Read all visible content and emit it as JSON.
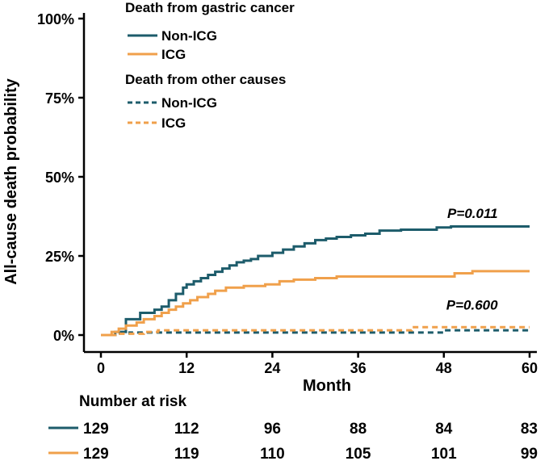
{
  "chart_data": {
    "type": "line",
    "subtype": "cumulative-incidence-step",
    "xlabel": "Month",
    "ylabel": "All-cause death probability",
    "xlim": [
      0,
      60
    ],
    "ylim": [
      0,
      100
    ],
    "x_ticks": [
      0,
      12,
      24,
      36,
      48,
      60
    ],
    "y_ticks": [
      0,
      25,
      50,
      75,
      100
    ],
    "y_tick_labels": [
      "0%",
      "25%",
      "50%",
      "75%",
      "100%"
    ],
    "legend": {
      "groups": [
        {
          "heading": "Death from gastric cancer",
          "entries": [
            {
              "label": "Non-ICG",
              "series": "gc_non_icg"
            },
            {
              "label": "ICG",
              "series": "gc_icg"
            }
          ]
        },
        {
          "heading": "Death from other causes",
          "entries": [
            {
              "label": "Non-ICG",
              "series": "oc_non_icg"
            },
            {
              "label": "ICG",
              "series": "oc_icg"
            }
          ]
        }
      ]
    },
    "annotations": [
      {
        "text": "P=0.011",
        "x": 56,
        "y": 37,
        "anchor": "end"
      },
      {
        "text": "P=0.600",
        "x": 56,
        "y": 8,
        "anchor": "end"
      }
    ],
    "series": [
      {
        "id": "gc_non_icg",
        "name": "Death from gastric cancer – Non-ICG",
        "color": "#1d5c6b",
        "dash": "solid",
        "x": [
          0,
          2,
          3.5,
          5.5,
          7.5,
          8.5,
          9.5,
          10.5,
          11.5,
          12,
          13,
          14,
          15,
          16,
          17,
          18,
          19,
          20,
          21,
          22,
          24,
          25.5,
          27,
          28.5,
          30,
          31.5,
          33,
          35,
          37,
          39,
          42,
          45,
          47,
          49,
          60
        ],
        "y": [
          0,
          1,
          5,
          7,
          8,
          9,
          11,
          13,
          15,
          16,
          17,
          18,
          19,
          20,
          21,
          22,
          23,
          23.5,
          24,
          25,
          26,
          27,
          28,
          29,
          30,
          30.5,
          31,
          31.5,
          32,
          33,
          33.3,
          33.3,
          34,
          34.3,
          34.3
        ]
      },
      {
        "id": "gc_icg",
        "name": "Death from gastric cancer – ICG",
        "color": "#f0a04b",
        "dash": "solid",
        "x": [
          0,
          1.5,
          2.5,
          3.5,
          5,
          6,
          7.5,
          8.5,
          9.5,
          10.5,
          11.5,
          12.5,
          13.5,
          15,
          16,
          17.5,
          20,
          23,
          25,
          27,
          30,
          33,
          36,
          40,
          45,
          49.5,
          52,
          60
        ],
        "y": [
          0,
          1,
          2,
          3,
          4,
          5,
          6,
          7,
          8,
          9,
          10,
          11,
          12,
          13,
          14,
          15,
          15.5,
          16,
          17,
          17.5,
          18,
          18.5,
          18.5,
          18.5,
          18.5,
          19.5,
          20.2,
          20.2
        ]
      },
      {
        "id": "oc_non_icg",
        "name": "Death from other causes – Non-ICG",
        "color": "#1d5c6b",
        "dash": "dashed",
        "x": [
          0,
          2,
          4,
          7,
          10,
          14,
          43,
          48,
          52,
          55,
          60
        ],
        "y": [
          0,
          0.5,
          0.8,
          0.8,
          0.8,
          0.8,
          0.8,
          1.5,
          1.5,
          1.5,
          1.5
        ]
      },
      {
        "id": "oc_icg",
        "name": "Death from other causes – ICG",
        "color": "#f0a04b",
        "dash": "dashed",
        "x": [
          0,
          2,
          6,
          8,
          9,
          14,
          20,
          26,
          34,
          42,
          43.5,
          48,
          52,
          60
        ],
        "y": [
          0,
          0.4,
          1,
          1.5,
          1.5,
          1.5,
          1.5,
          1.5,
          1.5,
          1.5,
          2.5,
          2.5,
          2.5,
          2.5
        ]
      }
    ]
  },
  "risk_table": {
    "title": "Number at risk",
    "times": [
      0,
      12,
      24,
      36,
      48,
      60
    ],
    "rows": [
      {
        "group": "Non-ICG",
        "color": "#1d5c6b",
        "values": [
          "129",
          "112",
          "96",
          "88",
          "84",
          "83"
        ]
      },
      {
        "group": "ICG",
        "color": "#f0a04b",
        "values": [
          "129",
          "119",
          "110",
          "105",
          "101",
          "99"
        ]
      }
    ]
  }
}
